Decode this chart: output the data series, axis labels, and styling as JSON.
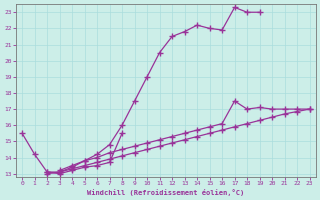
{
  "background_color": "#cceee8",
  "grid_color": "#aadddd",
  "line_color": "#993399",
  "marker": "+",
  "markersize": 4,
  "linewidth": 0.9,
  "xlabel": "Windchill (Refroidissement éolien,°C)",
  "xlim": [
    -0.5,
    23.5
  ],
  "ylim": [
    12.8,
    23.5
  ],
  "yticks": [
    13,
    14,
    15,
    16,
    17,
    18,
    19,
    20,
    21,
    22,
    23
  ],
  "xticks": [
    0,
    1,
    2,
    3,
    4,
    5,
    6,
    7,
    8,
    9,
    10,
    11,
    12,
    13,
    14,
    15,
    16,
    17,
    18,
    19,
    20,
    21,
    22,
    23
  ],
  "series": [
    {
      "x": [
        0,
        1,
        2,
        3,
        4,
        5,
        6,
        7,
        8,
        9,
        10,
        11,
        12,
        13,
        14,
        15,
        16,
        17,
        18,
        19
      ],
      "y": [
        15.5,
        14.2,
        13.1,
        13.1,
        13.4,
        13.8,
        14.2,
        14.8,
        16.0,
        17.5,
        19.0,
        20.5,
        21.5,
        21.8,
        22.2,
        22.0,
        21.9,
        23.3,
        23.0,
        23.0
      ]
    },
    {
      "x": [
        2,
        3,
        4,
        5,
        6,
        7,
        8
      ],
      "y": [
        13.1,
        13.0,
        13.2,
        13.4,
        13.5,
        13.7,
        15.5
      ]
    },
    {
      "x": [
        3,
        4,
        5,
        6,
        7,
        8,
        9,
        10,
        11,
        12,
        13,
        14,
        15,
        16,
        17,
        18,
        19,
        20,
        21,
        22,
        23
      ],
      "y": [
        13.2,
        13.5,
        13.8,
        14.0,
        14.3,
        14.5,
        14.7,
        14.9,
        15.1,
        15.3,
        15.5,
        15.7,
        15.9,
        16.1,
        17.5,
        17.0,
        17.1,
        17.0,
        17.0,
        17.0,
        17.0
      ]
    },
    {
      "x": [
        2,
        3,
        4,
        5,
        6,
        7,
        8,
        9,
        10,
        11,
        12,
        13,
        14,
        15,
        16,
        17,
        18,
        19,
        20,
        21,
        22,
        23
      ],
      "y": [
        13.0,
        13.1,
        13.3,
        13.5,
        13.7,
        13.9,
        14.1,
        14.3,
        14.5,
        14.7,
        14.9,
        15.1,
        15.3,
        15.5,
        15.7,
        15.9,
        16.1,
        16.3,
        16.5,
        16.7,
        16.85,
        17.0
      ]
    }
  ]
}
